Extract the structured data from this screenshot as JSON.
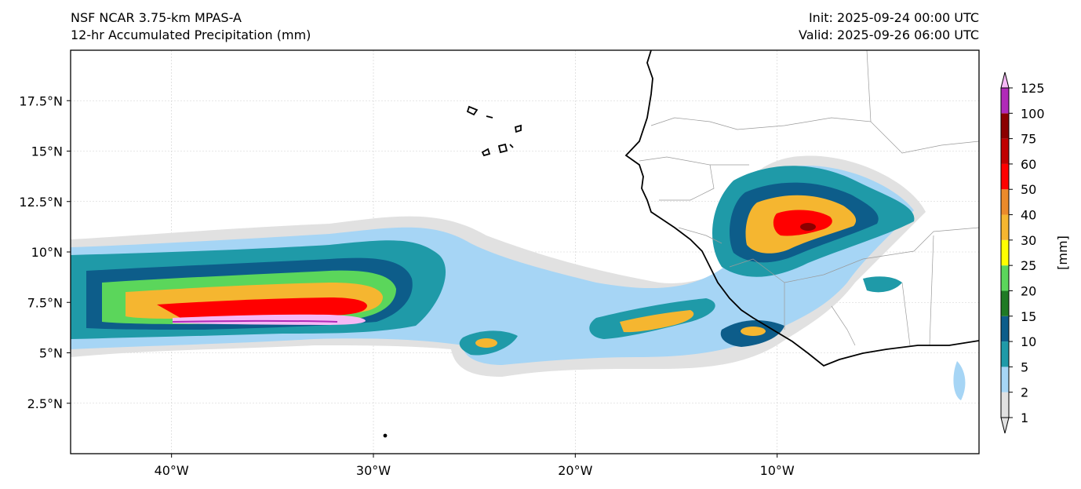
{
  "header": {
    "model": "NSF NCAR 3.75-km MPAS-A",
    "field": "12-hr Accumulated Precipitation (mm)",
    "init": "Init: 2025-09-24 00:00 UTC",
    "valid": "Valid: 2025-09-26 06:00 UTC"
  },
  "map": {
    "lon_range": [
      -45,
      0
    ],
    "lat_range": [
      0,
      20
    ],
    "lat_ticks": [
      {
        "value": 17.5,
        "label": "17.5°N"
      },
      {
        "value": 15,
        "label": "15°N"
      },
      {
        "value": 12.5,
        "label": "12.5°N"
      },
      {
        "value": 10,
        "label": "10°N"
      },
      {
        "value": 7.5,
        "label": "7.5°N"
      },
      {
        "value": 5,
        "label": "5°N"
      },
      {
        "value": 2.5,
        "label": "2.5°N"
      }
    ],
    "lon_ticks": [
      {
        "value": -40,
        "label": "40°W"
      },
      {
        "value": -30,
        "label": "30°W"
      },
      {
        "value": -20,
        "label": "20°W"
      },
      {
        "value": -10,
        "label": "10°W"
      }
    ]
  },
  "colorbar": {
    "unit_label": "[mm]",
    "levels": [
      "1",
      "2",
      "5",
      "10",
      "15",
      "20",
      "25",
      "30",
      "40",
      "50",
      "60",
      "75",
      "100",
      "125"
    ],
    "colors": [
      "#e1e1e1",
      "#a6d5f5",
      "#1f9aa8",
      "#0d5d8a",
      "#1f7a24",
      "#5bd65b",
      "#ffff00",
      "#f5b630",
      "#eb8a2a",
      "#ff0000",
      "#c00000",
      "#8b0000",
      "#b02ab8",
      "#f5b8f5"
    ]
  }
}
